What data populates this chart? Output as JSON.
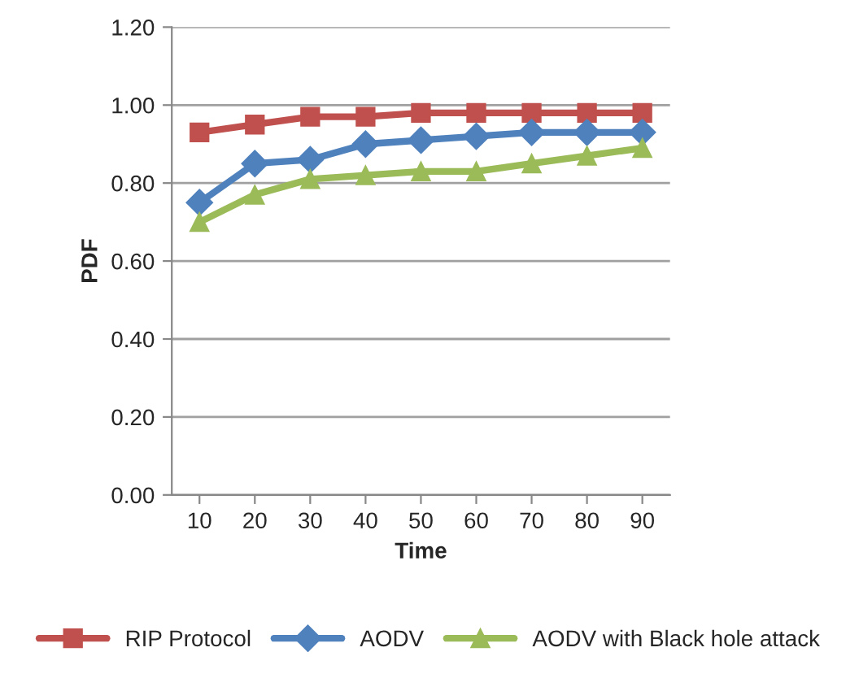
{
  "chart_data": {
    "type": "line",
    "xlabel": "Time",
    "ylabel": "PDF",
    "categories": [
      "10",
      "20",
      "30",
      "40",
      "50",
      "60",
      "70",
      "80",
      "90"
    ],
    "series": [
      {
        "name": "RIP Protocol",
        "color": "#c0504d",
        "marker": "square",
        "values": [
          0.93,
          0.95,
          0.97,
          0.97,
          0.98,
          0.98,
          0.98,
          0.98,
          0.98
        ]
      },
      {
        "name": "AODV",
        "color": "#4f81bd",
        "marker": "diamond",
        "values": [
          0.75,
          0.85,
          0.86,
          0.9,
          0.91,
          0.92,
          0.93,
          0.93,
          0.93
        ]
      },
      {
        "name": "AODV with Black hole attack",
        "color": "#9bbb59",
        "marker": "triangle",
        "values": [
          0.7,
          0.77,
          0.81,
          0.82,
          0.83,
          0.83,
          0.85,
          0.87,
          0.89
        ]
      }
    ],
    "ylim": [
      0,
      1.2
    ],
    "yticks": [
      {
        "value": 0,
        "label": "0.00"
      },
      {
        "value": 0.2,
        "label": "0.20"
      },
      {
        "value": 0.4,
        "label": "0.40"
      },
      {
        "value": 0.6,
        "label": "0.60"
      },
      {
        "value": 0.8,
        "label": "0.80"
      },
      {
        "value": 1.0,
        "label": "1.00"
      },
      {
        "value": 1.2,
        "label": "1.20"
      }
    ],
    "grid": "y",
    "legend": "bottom",
    "line_style": "solid"
  }
}
